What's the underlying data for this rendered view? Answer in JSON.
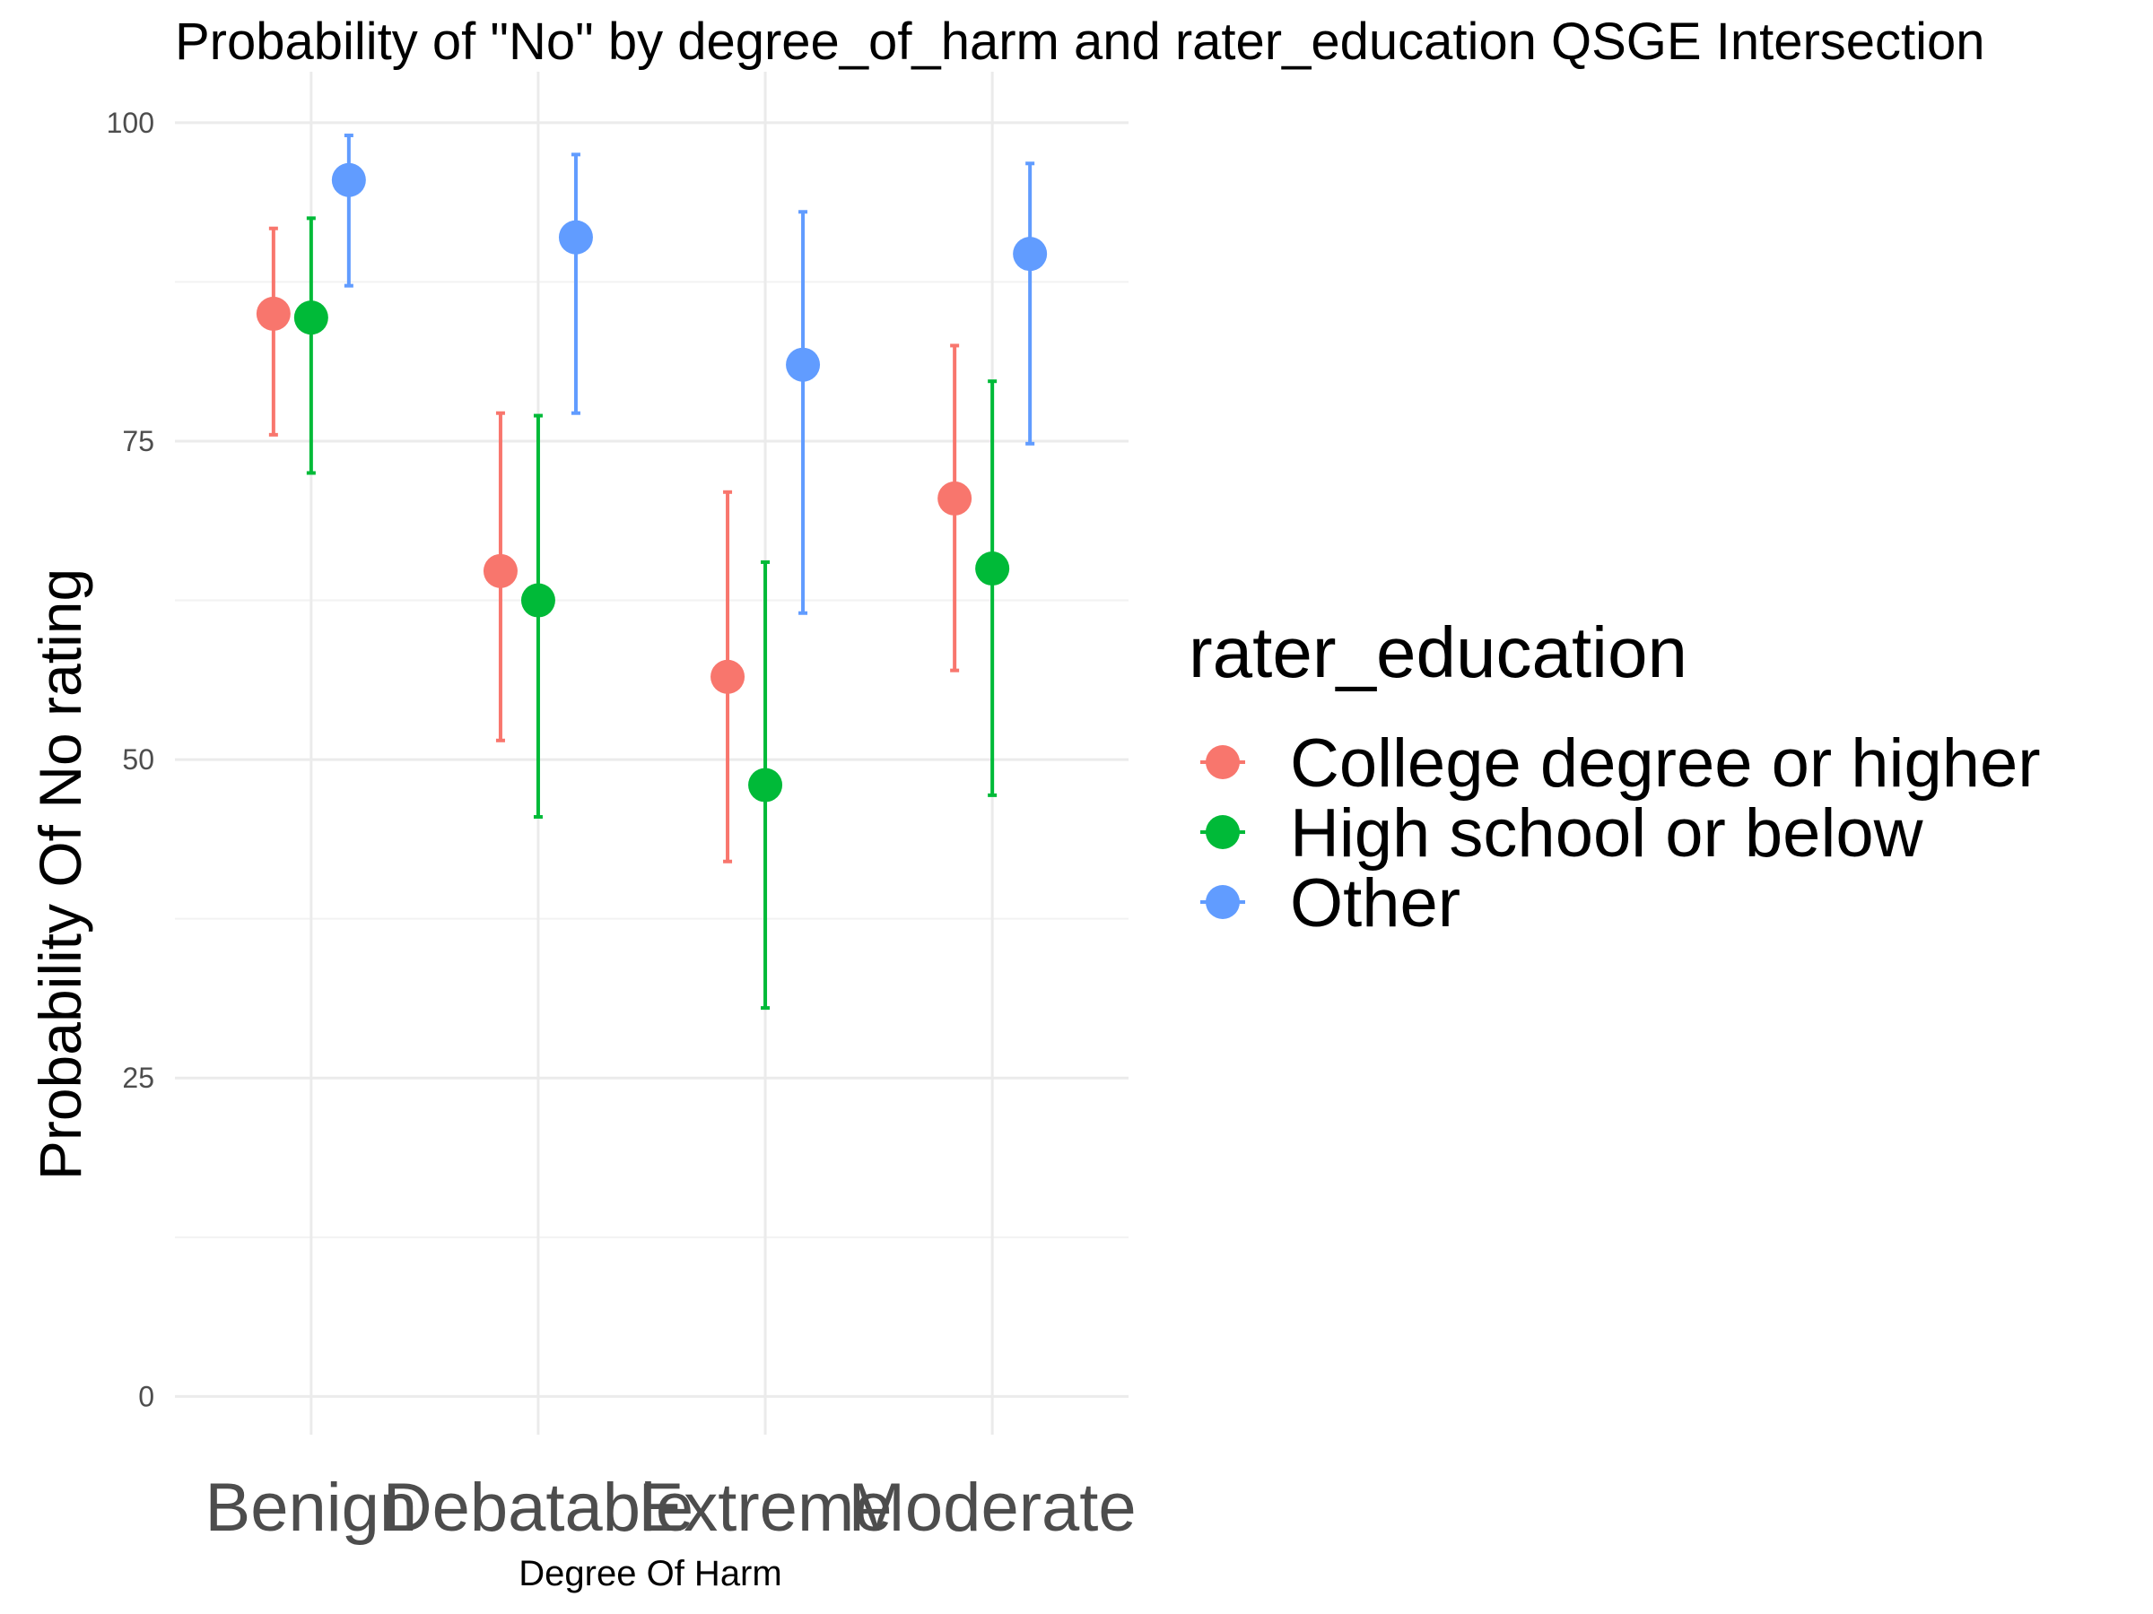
{
  "chart_data": {
    "type": "scatter",
    "subtype": "point-with-errorbars",
    "title": "Probability of \"No\" by degree_of_harm and  rater_education  QSGE Intersection",
    "xlabel": "Degree Of Harm",
    "ylabel": "Probability Of No rating",
    "categories": [
      "Benign",
      "Debatable",
      "Extreme",
      "Moderate"
    ],
    "ylim": [
      -3,
      104
    ],
    "yticks": [
      0,
      25,
      50,
      75,
      100
    ],
    "grid": true,
    "legend": {
      "title": "rater_education",
      "position": "right"
    },
    "series": [
      {
        "name": "College degree or higher",
        "color": "#F8766D",
        "values": [
          85.0,
          64.8,
          56.5,
          70.5
        ],
        "lower": [
          75.5,
          51.5,
          42.0,
          57.0
        ],
        "upper": [
          91.7,
          77.2,
          71.0,
          82.5
        ]
      },
      {
        "name": "High school or below",
        "color": "#00BA38",
        "values": [
          84.7,
          62.5,
          48.0,
          65.0
        ],
        "lower": [
          72.5,
          45.5,
          30.5,
          47.2
        ],
        "upper": [
          92.5,
          77.0,
          65.5,
          79.7
        ]
      },
      {
        "name": "Other",
        "color": "#619CFF",
        "values": [
          95.5,
          91.0,
          81.0,
          89.7
        ],
        "lower": [
          87.2,
          77.2,
          61.5,
          74.8
        ],
        "upper": [
          99.0,
          97.5,
          93.0,
          96.8
        ]
      }
    ]
  }
}
